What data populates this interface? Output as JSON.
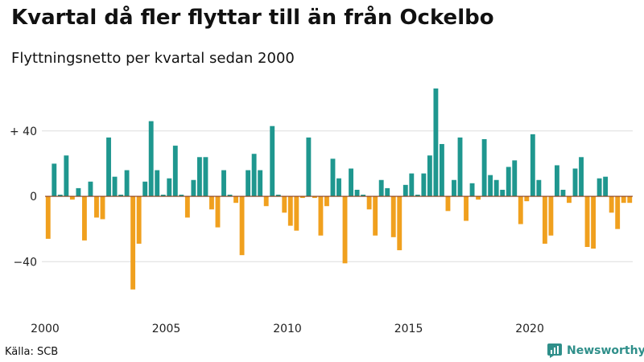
{
  "header": {
    "title": "Kvartal då fler flyttar till än från Ockelbo",
    "subtitle": "Flyttningsnetto per kvartal sedan 2000"
  },
  "footer": {
    "source": "Källa: SCB",
    "brand": "Newsworthy"
  },
  "colors": {
    "positive": "#1f978f",
    "negative": "#f0a01e",
    "baseline": "#8a3d1c",
    "grid": "#dddddd"
  },
  "chart_data": {
    "type": "bar",
    "title": "Kvartal då fler flyttar till än från Ockelbo",
    "subtitle": "Flyttningsnetto per kvartal sedan 2000",
    "xlabel": "",
    "ylabel": "",
    "x_start": 2000,
    "periods_per_year": 4,
    "ylim": [
      -63,
      66
    ],
    "y_ticks": [
      {
        "value": 40,
        "label": "+ 40"
      },
      {
        "value": 0,
        "label": "0"
      },
      {
        "value": -40,
        "label": "−40"
      }
    ],
    "x_ticks": [
      {
        "value": 2000,
        "label": "2000"
      },
      {
        "value": 2005,
        "label": "2005"
      },
      {
        "value": 2010,
        "label": "2010"
      },
      {
        "value": 2015,
        "label": "2015"
      },
      {
        "value": 2020,
        "label": "2020"
      }
    ],
    "grid": true,
    "values": [
      -26,
      20,
      1,
      25,
      -2,
      5,
      -27,
      9,
      -13,
      -14,
      36,
      12,
      1,
      16,
      -57,
      -29,
      9,
      46,
      16,
      1,
      11,
      31,
      1,
      -13,
      10,
      24,
      24,
      -8,
      -19,
      16,
      1,
      -4,
      -36,
      16,
      26,
      16,
      -6,
      43,
      1,
      -10,
      -18,
      -21,
      -1,
      36,
      -1,
      -24,
      -6,
      23,
      11,
      -41,
      17,
      4,
      1,
      -8,
      -24,
      10,
      5,
      -25,
      -33,
      7,
      14,
      1,
      14,
      25,
      66,
      32,
      -9,
      10,
      36,
      -15,
      8,
      -2,
      35,
      13,
      10,
      4,
      18,
      22,
      -17,
      -3,
      38,
      10,
      -29,
      -24,
      19,
      4,
      -4,
      17,
      24,
      -31,
      -32,
      11,
      12,
      -10,
      -20,
      -4,
      -4
    ]
  }
}
